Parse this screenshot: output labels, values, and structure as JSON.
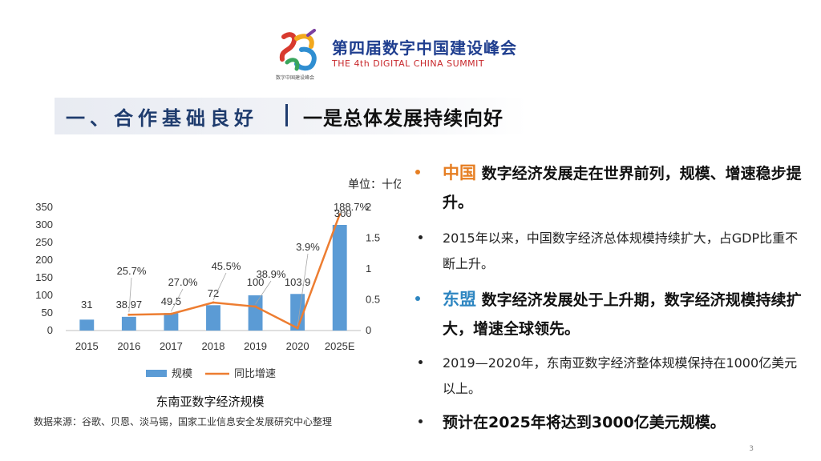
{
  "logo": {
    "title_cn": "第四届数字中国建设峰会",
    "title_en": "THE 4th DIGITAL CHINA SUMMIT",
    "mark_text": "数字中国建设峰会"
  },
  "header": {
    "section": "一、合作基础良好",
    "subtitle": "一是总体发展持续向好"
  },
  "chart_data": {
    "type": "bar",
    "title": "东南亚数字经济规模",
    "unit_label": "单位：十亿美",
    "categories": [
      "2015",
      "2016",
      "2017",
      "2018",
      "2019",
      "2020",
      "2025E"
    ],
    "series": [
      {
        "name": "规模",
        "type": "bar",
        "axis": "left",
        "values": [
          31,
          38.97,
          49.5,
          72,
          100,
          103.9,
          300
        ],
        "labels": [
          "31",
          "38.97",
          "49.5",
          "72",
          "100",
          "103.9",
          "300"
        ]
      },
      {
        "name": "同比增速",
        "type": "line",
        "axis": "right",
        "values": [
          null,
          0.257,
          0.27,
          0.455,
          0.389,
          0.039,
          1.887
        ],
        "labels": [
          "",
          "25.7%",
          "27.0%",
          "45.5%",
          "38.9%",
          "3.9%",
          "188.7%"
        ]
      }
    ],
    "y_left": {
      "min": 0,
      "max": 350,
      "ticks": [
        "0",
        "50",
        "100",
        "150",
        "200",
        "250",
        "300",
        "350"
      ]
    },
    "y_right": {
      "min": 0,
      "max": 2,
      "ticks": [
        "0",
        "0.5",
        "1",
        "1.5",
        "2"
      ]
    },
    "legend_position": "bottom",
    "grid": false,
    "colors": {
      "bar": "#5b9bd5",
      "line": "#ed7d31"
    }
  },
  "source": "数据来源：谷歌、贝恩、淡马锡，国家工业信息安全发展研究中心整理",
  "bullets": [
    {
      "highlight": "中国",
      "text": "数字经济发展走在世界前列，规模、增速稳步提升。"
    },
    {
      "text": "2015年以来，中国数字经济总体规模持续扩大，占GDP比重不断上升。"
    },
    {
      "highlight": "东盟",
      "text": "数字经济发展处于上升期，数字经济规模持续扩大，增速全球领先。"
    },
    {
      "text": "2019—2020年，东南亚数字经济整体规模保持在1000亿美元以上。"
    },
    {
      "text": "预计在2025年将达到3000亿美元规模。"
    }
  ],
  "page_number": "3",
  "colors": {
    "accent_orange": "#e67e22",
    "accent_blue": "#2e86c1",
    "title_navy": "#1f3c6e"
  }
}
